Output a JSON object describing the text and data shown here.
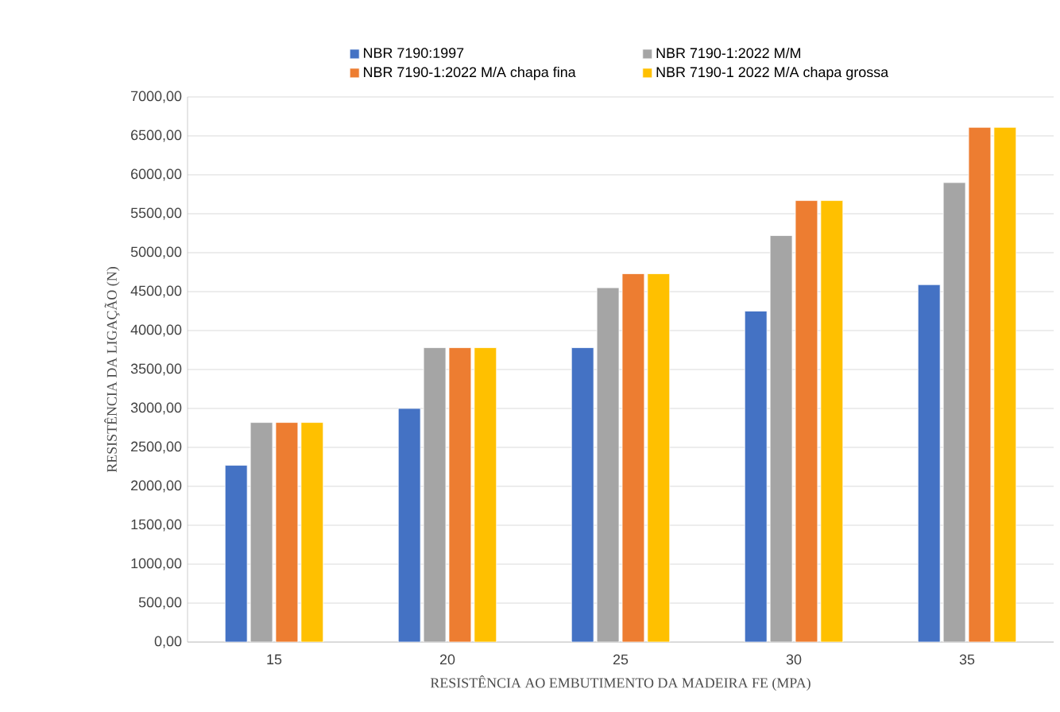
{
  "chart_data": {
    "type": "bar",
    "xlabel": "RESISTÊNCIA AO EMBUTIMENTO DA MADEIRA FE (MPA)",
    "ylabel": "RESISTÊNCIA DA LIGAÇÃO (N)",
    "categories": [
      "15",
      "20",
      "25",
      "30",
      "35"
    ],
    "series": [
      {
        "name": "NBR 7190:1997",
        "color": "#4472c4",
        "values": [
          2270,
          3000,
          3780,
          4250,
          4590
        ]
      },
      {
        "name": "NBR 7190-1:2022 M/M",
        "color": "#a5a5a5",
        "values": [
          2820,
          3780,
          4550,
          5220,
          5900
        ]
      },
      {
        "name": "NBR 7190-1:2022 M/A chapa fina",
        "color": "#ed7d31",
        "values": [
          2820,
          3780,
          4730,
          5670,
          6610
        ]
      },
      {
        "name": "NBR 7190-1 2022 M/A chapa grossa",
        "color": "#ffc000",
        "values": [
          2820,
          3780,
          4730,
          5670,
          6610
        ]
      }
    ],
    "ylim": [
      0,
      7000
    ],
    "yticks": [
      {
        "value": 0,
        "label": "0,00"
      },
      {
        "value": 500,
        "label": "500,00"
      },
      {
        "value": 1000,
        "label": "1000,00"
      },
      {
        "value": 1500,
        "label": "1500,00"
      },
      {
        "value": 2000,
        "label": "2000,00"
      },
      {
        "value": 2500,
        "label": "2500,00"
      },
      {
        "value": 3000,
        "label": "3000,00"
      },
      {
        "value": 3500,
        "label": "3500,00"
      },
      {
        "value": 4000,
        "label": "4000,00"
      },
      {
        "value": 4500,
        "label": "4500,00"
      },
      {
        "value": 5000,
        "label": "5000,00"
      },
      {
        "value": 5500,
        "label": "5500,00"
      },
      {
        "value": 6000,
        "label": "6000,00"
      },
      {
        "value": 6500,
        "label": "6500,00"
      },
      {
        "value": 7000,
        "label": "7000,00"
      }
    ],
    "grid": "y",
    "legend": "top"
  }
}
